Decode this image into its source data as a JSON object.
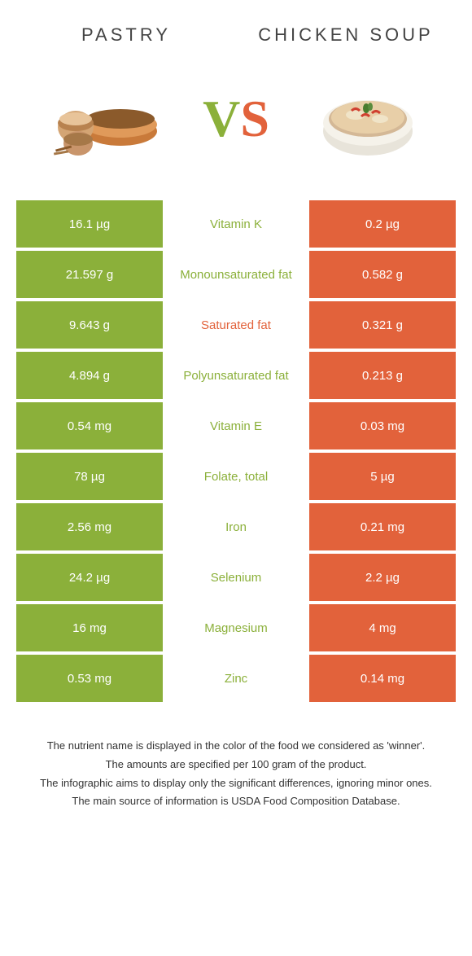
{
  "colors": {
    "green": "#8bb03a",
    "orange": "#e2623b"
  },
  "foods": {
    "left": {
      "name": "Pastry"
    },
    "right": {
      "name": "Chicken Soup"
    }
  },
  "vs": {
    "v": "V",
    "s": "S"
  },
  "rows": [
    {
      "left": "16.1 µg",
      "label": "Vitamin K",
      "right": "0.2 µg",
      "winner": "left"
    },
    {
      "left": "21.597 g",
      "label": "Monounsaturated fat",
      "right": "0.582 g",
      "winner": "left"
    },
    {
      "left": "9.643 g",
      "label": "Saturated fat",
      "right": "0.321 g",
      "winner": "right"
    },
    {
      "left": "4.894 g",
      "label": "Polyunsaturated fat",
      "right": "0.213 g",
      "winner": "left"
    },
    {
      "left": "0.54 mg",
      "label": "Vitamin E",
      "right": "0.03 mg",
      "winner": "left"
    },
    {
      "left": "78 µg",
      "label": "Folate, total",
      "right": "5 µg",
      "winner": "left"
    },
    {
      "left": "2.56 mg",
      "label": "Iron",
      "right": "0.21 mg",
      "winner": "left"
    },
    {
      "left": "24.2 µg",
      "label": "Selenium",
      "right": "2.2 µg",
      "winner": "left"
    },
    {
      "left": "16 mg",
      "label": "Magnesium",
      "right": "4 mg",
      "winner": "left"
    },
    {
      "left": "0.53 mg",
      "label": "Zinc",
      "right": "0.14 mg",
      "winner": "left"
    }
  ],
  "footer": [
    "The nutrient name is displayed in the color of the food we considered as 'winner'.",
    "The amounts are specified per 100 gram of the product.",
    "The infographic aims to display only the significant differences, ignoring minor ones.",
    "The main source of information is USDA Food Composition Database."
  ]
}
